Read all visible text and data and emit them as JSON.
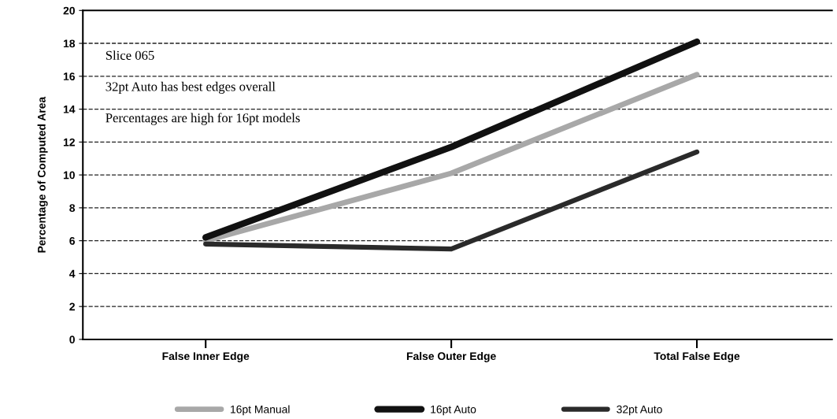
{
  "chart_data": {
    "type": "line",
    "ylabel": "Percentage of Computed Area",
    "categories": [
      "False Inner Edge",
      "False Outer Edge",
      "Total False Edge"
    ],
    "series": [
      {
        "name": "16pt Manual",
        "color": "#a8a8a8",
        "values": [
          6.0,
          10.1,
          16.1
        ]
      },
      {
        "name": "16pt Auto",
        "color": "#111111",
        "values": [
          6.2,
          11.7,
          18.1
        ]
      },
      {
        "name": "32pt Auto",
        "color": "#2a2a2a",
        "values": [
          5.8,
          5.5,
          11.4
        ]
      }
    ],
    "ylim": [
      0,
      20
    ],
    "yticks": [
      0,
      2,
      4,
      6,
      8,
      10,
      12,
      14,
      16,
      18,
      20
    ],
    "grid": "y",
    "legend": "bottom",
    "marker": "none",
    "line_style": "solid",
    "annotations": [
      "Slice 065",
      "32pt Auto has best edges overall",
      "Percentages are high for 16pt models"
    ]
  }
}
